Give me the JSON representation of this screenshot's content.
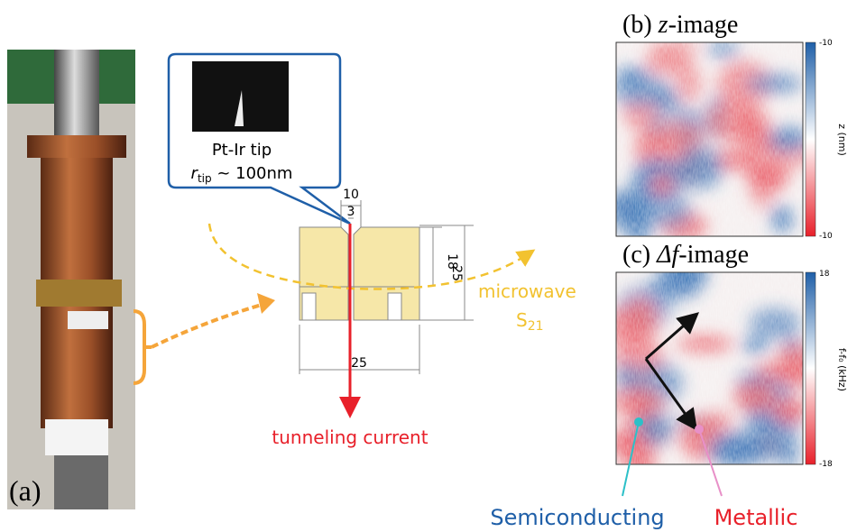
{
  "panel_a": {
    "label": "(a)"
  },
  "tip": {
    "name": "Pt-Ir tip",
    "radius_symbol": "r",
    "radius_subscript": "tip",
    "radius_value": " ~ 100nm"
  },
  "drawing": {
    "top_width": "10",
    "gap": "3",
    "inner_height": "18",
    "height": "25",
    "width": "25"
  },
  "microwave": {
    "label": "microwave",
    "symbol": "S",
    "subscript": "21"
  },
  "current": {
    "label": "tunneling current"
  },
  "panel_b": {
    "label": "(b) ",
    "title_italic": "z",
    "title_rest": "-image",
    "colorbar_max": "-10",
    "colorbar_min": "-10",
    "colorbar_label": "z (nm)"
  },
  "panel_c": {
    "label": "(c) ",
    "title_italic": "Δf",
    "title_rest": "-image",
    "colorbar_max": "18",
    "colorbar_min": "-18",
    "colorbar_label": "f-f₀ (kHz)"
  },
  "legend": {
    "semiconducting": "Semiconducting",
    "metallic": "Metallic"
  }
}
